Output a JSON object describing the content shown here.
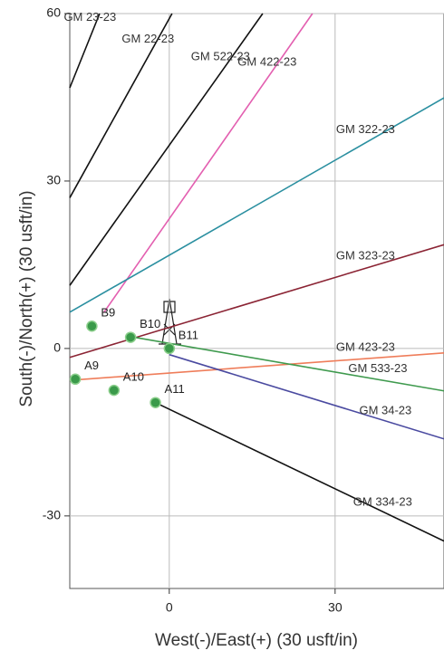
{
  "chart_data": {
    "type": "line",
    "x_label": "West(-)/East(+) (30 usft/in)",
    "y_label": "South(-)/North(+) (30 usft/in)",
    "xlim": [
      -18,
      49.7
    ],
    "ylim": [
      -43,
      60
    ],
    "xticks": [
      0,
      30
    ],
    "yticks": [
      -30,
      0,
      30,
      60
    ],
    "grid": true,
    "series": [
      {
        "name": "GM 23-23",
        "color": "#111111",
        "x": [
          -18,
          -12.6
        ],
        "values": [
          46.7,
          60
        ]
      },
      {
        "name": "GM 22-23",
        "color": "#111111",
        "x": [
          -18,
          0.5
        ],
        "values": [
          27,
          60
        ]
      },
      {
        "name": "GM 522-23",
        "color": "#111111",
        "x": [
          -18,
          16.9
        ],
        "values": [
          11.3,
          60
        ]
      },
      {
        "name": "GM 422-23",
        "color": "#e35fb0",
        "x": [
          -11.8,
          25.9
        ],
        "values": [
          6.5,
          60
        ]
      },
      {
        "name": "GM 322-23",
        "color": "#2a8fa0",
        "x": [
          -18,
          49.7
        ],
        "values": [
          6.5,
          44.9
        ]
      },
      {
        "name": "GM 323-23",
        "color": "#8b2434",
        "x": [
          -18,
          49.7
        ],
        "values": [
          -1.6,
          18.6
        ]
      },
      {
        "name": "GM 423-23",
        "color": "#ef7d5a",
        "x": [
          -18,
          49.7
        ],
        "values": [
          -5.7,
          -0.8
        ]
      },
      {
        "name": "GM 533-23",
        "color": "#3f9a4e",
        "x": [
          -6.9,
          49.7
        ],
        "values": [
          2.1,
          -7.6
        ]
      },
      {
        "name": "GM 34-23",
        "color": "#4a4aa0",
        "x": [
          0,
          49.7
        ],
        "values": [
          -1.1,
          -16.2
        ]
      },
      {
        "name": "GM 334-23",
        "color": "#111111",
        "x": [
          -2.5,
          49.7
        ],
        "values": [
          -9.7,
          -34.5
        ]
      }
    ],
    "wells": {
      "color": "#3a9a4a",
      "labels": [
        "B9",
        "B10",
        "B11",
        "A9",
        "A10",
        "A11"
      ],
      "x": [
        -14,
        -7,
        0,
        -17,
        -10,
        -2.5
      ],
      "y": [
        4,
        2,
        0,
        -5.5,
        -7.5,
        -9.7
      ]
    }
  }
}
